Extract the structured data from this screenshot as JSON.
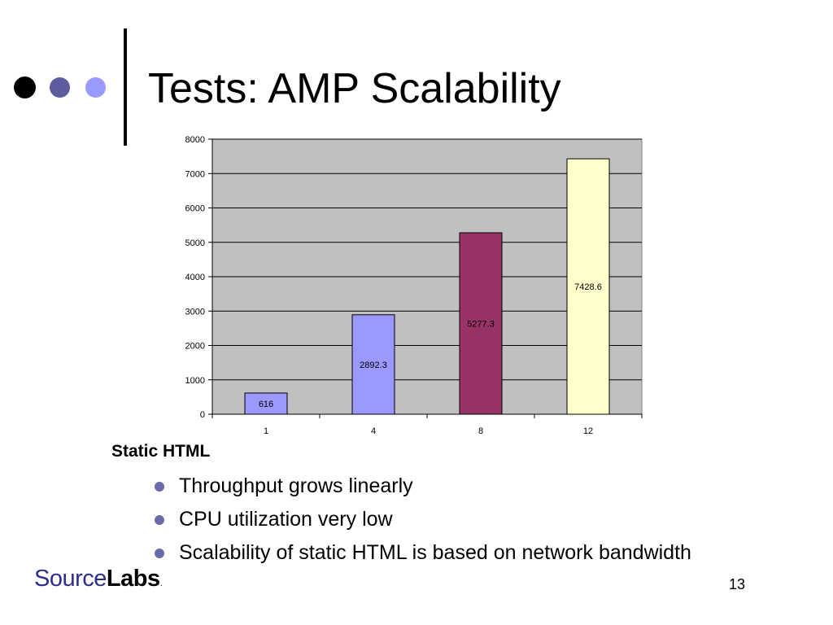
{
  "slide": {
    "title": "Tests: AMP Scalability",
    "section_heading": "Static HTML",
    "bullets": [
      "Throughput grows linearly",
      "CPU utilization very low",
      "Scalability of static HTML is based on network bandwidth"
    ],
    "logo": {
      "part1": "Source",
      "part2": "Labs",
      "suffix": "."
    },
    "page_number": "13",
    "decor_dot_colors": [
      "#000000",
      "#5c5c9e",
      "#9999ff"
    ]
  },
  "chart_data": {
    "type": "bar",
    "categories": [
      "1",
      "4",
      "8",
      "12"
    ],
    "values": [
      616,
      2892.3,
      5277.3,
      7428.6
    ],
    "value_labels": [
      "616",
      "2892.3",
      "5277.3",
      "7428.6"
    ],
    "bar_colors": [
      "#9999ff",
      "#9999ff",
      "#993366",
      "#ffffcc"
    ],
    "label_box_colors": [
      "#9999ff",
      "#9999ff",
      "#993366",
      "#ffffcc"
    ],
    "plot_background": "#c0c0c0",
    "ylim": [
      0,
      8000
    ],
    "yticks": [
      0,
      1000,
      2000,
      3000,
      4000,
      5000,
      6000,
      7000,
      8000
    ],
    "grid": true,
    "legend": "none",
    "title": "",
    "xlabel": "",
    "ylabel": ""
  }
}
